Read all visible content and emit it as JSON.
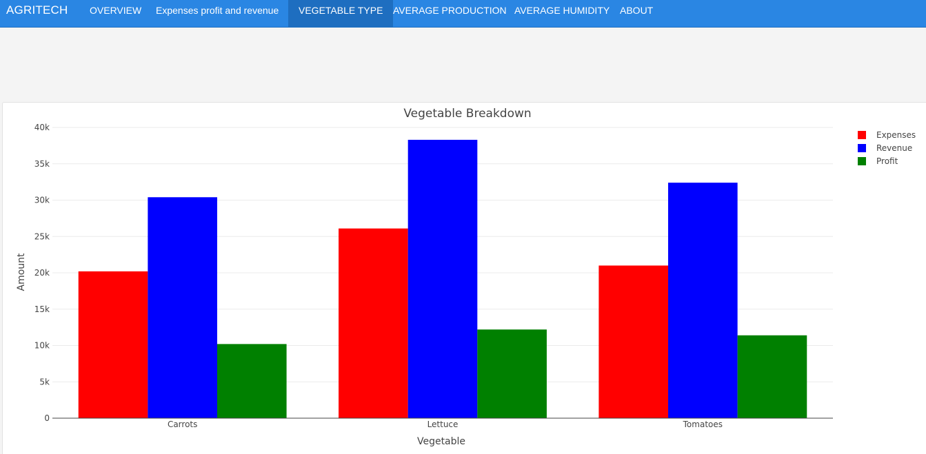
{
  "navbar": {
    "brand": "AGRITECH",
    "items": [
      {
        "label": "OVERVIEW"
      },
      {
        "label": "Expenses profit and revenue"
      },
      {
        "label": "VEGETABLE TYPE"
      },
      {
        "label": "AVERAGE PRODUCTION"
      },
      {
        "label": "AVERAGE HUMIDITY"
      },
      {
        "label": "ABOUT"
      }
    ],
    "active_index": 2,
    "bg_color": "#2a86e3",
    "active_color": "#1e6ec0"
  },
  "chart_data": {
    "type": "bar",
    "title": "Vegetable Breakdown",
    "xlabel": "Vegetable",
    "ylabel": "Amount",
    "categories": [
      "Carrots",
      "Lettuce",
      "Tomatoes"
    ],
    "series": [
      {
        "name": "Expenses",
        "color": "#ff0000",
        "values": [
          20200,
          26100,
          21000
        ]
      },
      {
        "name": "Revenue",
        "color": "#0000ff",
        "values": [
          30400,
          38300,
          32400
        ]
      },
      {
        "name": "Profit",
        "color": "#008000",
        "values": [
          10200,
          12200,
          11400
        ]
      }
    ],
    "ylim": [
      0,
      40000
    ],
    "yticks": [
      0,
      5000,
      10000,
      15000,
      20000,
      25000,
      30000,
      35000,
      40000
    ],
    "ytick_labels": [
      "0",
      "5k",
      "10k",
      "15k",
      "20k",
      "25k",
      "30k",
      "35k",
      "40k"
    ],
    "grid": true,
    "legend_position": "top-right"
  }
}
